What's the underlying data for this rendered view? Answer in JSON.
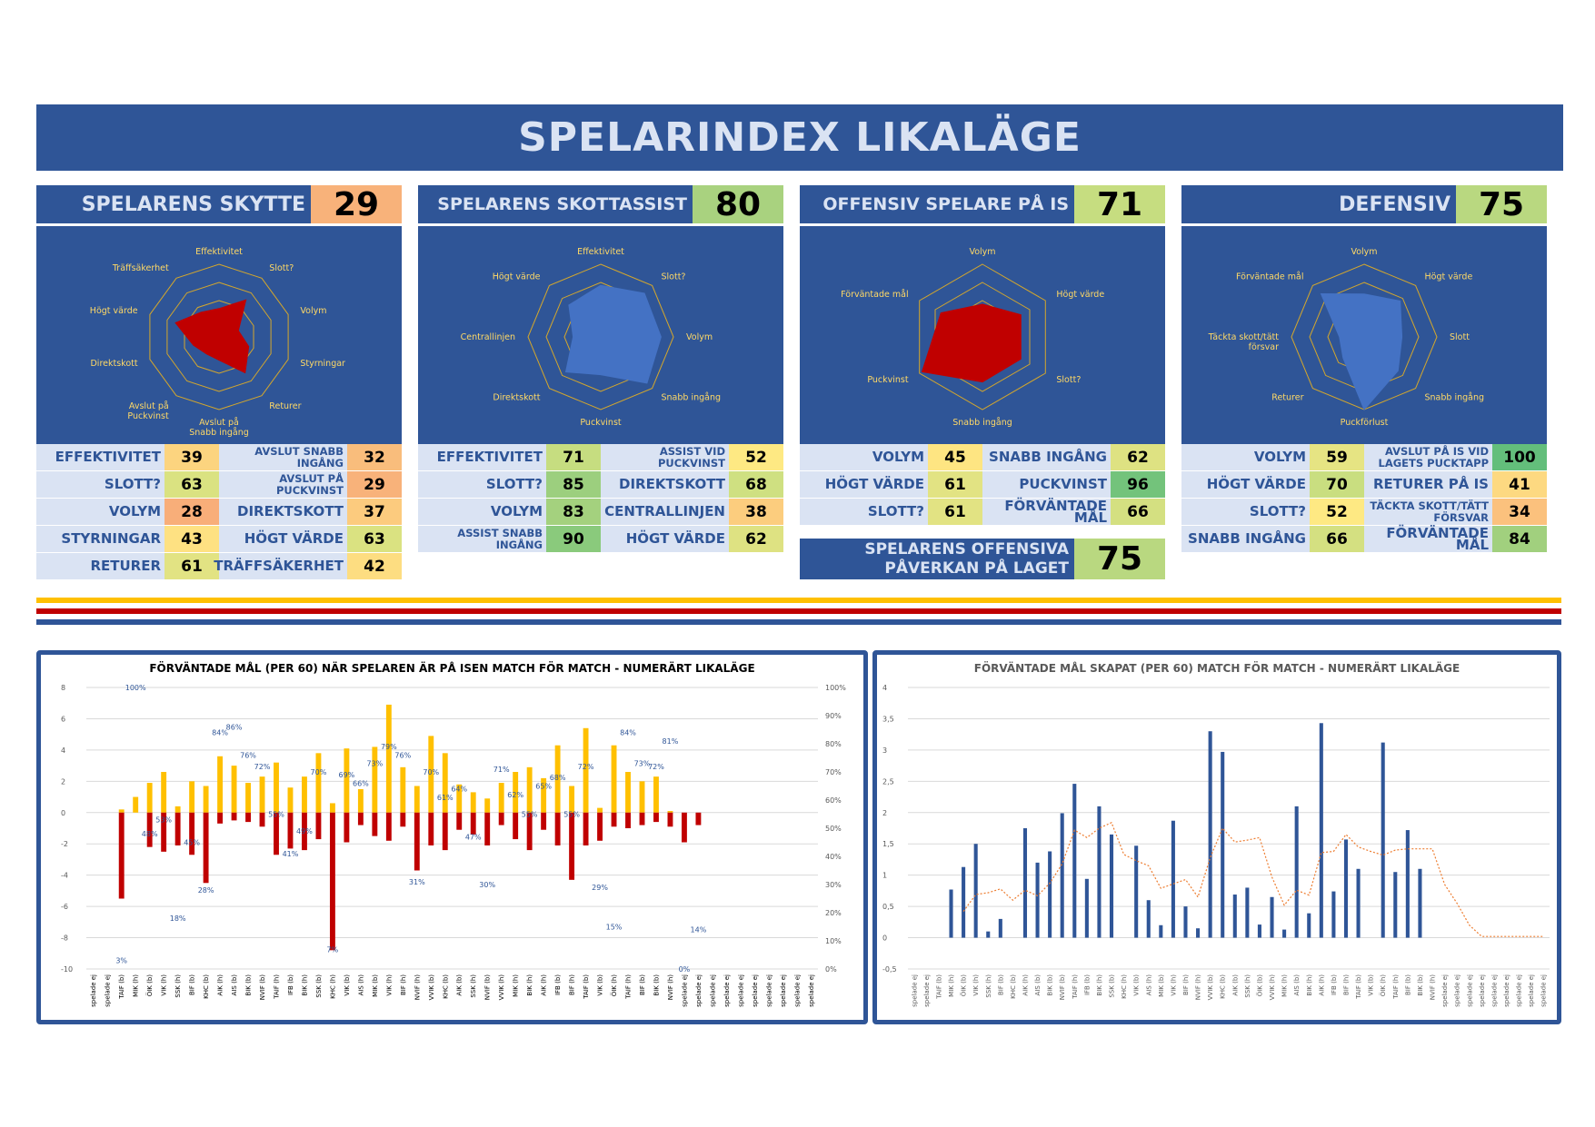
{
  "title": "SPELARINDEX LIKALÄGE",
  "colors": {
    "navy": "#2f5597",
    "light_blue": "#dae3f3",
    "header_text": "#dae3f3",
    "radar_red": "#c00000",
    "radar_blue": "#4472c4",
    "radar_grid": "#d4a72c",
    "bar_yellow": "#ffc000",
    "bar_red": "#c00000",
    "stripe_yellow": "#ffc000",
    "stripe_red": "#c00000",
    "stripe_blue": "#2f5597",
    "line_orange": "#ed7d31"
  },
  "panels": [
    {
      "name": "SPELARENS SKYTTE",
      "value": "29",
      "value_color": "#f8b27a",
      "radar": {
        "color": "#c00000",
        "axes": [
          "Effektivitet",
          "Slott?",
          "Volym",
          "Styrningar",
          "Returer",
          "Avslut på Snabb ingång",
          "Avslut på Puckvinst",
          "Direktskott",
          "Högt värde",
          "Träffsäkerhet"
        ],
        "values": [
          39,
          63,
          28,
          43,
          61,
          32,
          29,
          37,
          63,
          42
        ]
      },
      "rows": [
        {
          "l1": "EFFEKTIVITET",
          "v1": "39",
          "c1": "#fcd47f",
          "l2": "AVSLUT SNABB INGÅNG",
          "v2": "32",
          "c2": "#f9bd7c"
        },
        {
          "l1": "SLOTT?",
          "v1": "63",
          "c1": "#dae281",
          "l2": "AVSLUT PÅ PUCKVINST",
          "v2": "29",
          "c2": "#f8b27a"
        },
        {
          "l1": "VOLYM",
          "v1": "28",
          "c1": "#f8ae79",
          "l2": "DIREKTSKOTT",
          "v2": "37",
          "c2": "#fccb7e"
        },
        {
          "l1": "STYRNINGAR",
          "v1": "43",
          "c1": "#fee182",
          "l2": "HÖGT VÄRDE",
          "v2": "63",
          "c2": "#dae281"
        },
        {
          "l1": "RETURER",
          "v1": "61",
          "c1": "#e2e383",
          "l2": "TRÄFFSÄKERHET",
          "v2": "42",
          "c2": "#fddd81"
        }
      ]
    },
    {
      "name": "SPELARENS SKOTTASSIST",
      "value": "80",
      "value_color": "#a9d27f",
      "radar": {
        "color": "#4472c4",
        "axes": [
          "Effektivitet",
          "Slott?",
          "Volym",
          "Snabb ingång",
          "Puckvinst",
          "Direktskott",
          "Centrallinjen",
          "Högt värde"
        ],
        "values": [
          71,
          85,
          83,
          90,
          52,
          68,
          38,
          62
        ]
      },
      "rows": [
        {
          "l1": "EFFEKTIVITET",
          "v1": "71",
          "c1": "#c6dd80",
          "l2": "ASSIST VID PUCKVINST",
          "v2": "52",
          "c2": "#fee983"
        },
        {
          "l1": "SLOTT?",
          "v1": "85",
          "c1": "#9ccf7e",
          "l2": "DIREKTSKOTT",
          "v2": "68",
          "c2": "#cfe081"
        },
        {
          "l1": "VOLYM",
          "v1": "83",
          "c1": "#a4d17e",
          "l2": "CENTRALLINJEN",
          "v2": "38",
          "c2": "#fccd7e"
        },
        {
          "l1": "ASSIST SNABB INGÅNG",
          "v1": "90",
          "c1": "#8aca7c",
          "l2": "HÖGT VÄRDE",
          "v2": "62",
          "c2": "#dee282"
        }
      ]
    },
    {
      "name": "OFFENSIV SPELARE PÅ IS",
      "value": "71",
      "value_color": "#c6dd80",
      "radar": {
        "color": "#c00000",
        "axes": [
          "Volym",
          "Högt värde",
          "Slott?",
          "Snabb ingång",
          "Puckvinst",
          "Förväntade mål"
        ],
        "values": [
          45,
          61,
          61,
          62,
          96,
          66
        ]
      },
      "rows": [
        {
          "l1": "VOLYM",
          "v1": "45",
          "c1": "#fee582",
          "l2": "SNABB INGÅNG",
          "v2": "62",
          "c2": "#dee282"
        },
        {
          "l1": "HÖGT VÄRDE",
          "v1": "61",
          "c1": "#e2e383",
          "l2": "PUCKVINST",
          "v2": "96",
          "c2": "#73c37b"
        },
        {
          "l1": "SLOTT?",
          "v1": "61",
          "c1": "#e2e383",
          "l2": "FÖRVÄNTADE MÅL",
          "v2": "66",
          "c2": "#d4e081"
        }
      ]
    },
    {
      "name": "DEFENSIV",
      "value": "75",
      "value_color": "#b9d880",
      "radar": {
        "color": "#4472c4",
        "axes": [
          "Volym",
          "Högt värde",
          "Slott",
          "Snabb ingång",
          "Puckförlust",
          "Returer",
          "Täckta skott/tätt försvar",
          "Förväntade mål"
        ],
        "values": [
          59,
          70,
          52,
          66,
          100,
          41,
          34,
          84
        ]
      },
      "rows": [
        {
          "l1": "VOLYM",
          "v1": "59",
          "c1": "#e6e483",
          "l2": "AVSLUT PÅ IS VID LAGETS PUCKTAPP",
          "v2": "100",
          "c2": "#63be7b"
        },
        {
          "l1": "HÖGT VÄRDE",
          "v1": "70",
          "c1": "#c9de80",
          "l2": "RETURER PÅ IS",
          "v2": "41",
          "c2": "#fdd981"
        },
        {
          "l1": "SLOTT?",
          "v1": "52",
          "c1": "#fee983",
          "l2": "TÄCKTA SKOTT/TÄTT FÖRSVAR",
          "v2": "34",
          "c2": "#fbc17d"
        },
        {
          "l1": "SNABB INGÅNG",
          "v1": "66",
          "c1": "#d4e081",
          "l2": "FÖRVÄNTADE MÅL",
          "v2": "84",
          "c2": "#a1d07e"
        }
      ]
    }
  ],
  "offensive_impact": {
    "label": "SPELARENS OFFENSIVA PÅVERKAN PÅ LAGET",
    "value": "75",
    "value_color": "#b9d880"
  },
  "chart_data": [
    {
      "type": "bar",
      "title": "FÖRVÄNTADE MÅL (PER 60) NÄR SPELAREN ÄR PÅ ISEN MATCH FÖR MATCH - NUMERÄRT LIKALÄGE",
      "ylim": [
        -10,
        8
      ],
      "y_ticks": [
        8,
        6,
        4,
        2,
        0,
        -2,
        -4,
        -6,
        -8,
        -10
      ],
      "y2_ticks": [
        "100%",
        "90%",
        "80%",
        "70%",
        "60%",
        "50%",
        "40%",
        "30%",
        "20%",
        "10%",
        "0%"
      ],
      "y2lim": [
        0,
        100
      ],
      "categories": [
        "spelade ej",
        "spelade ej",
        "TAIF (b)",
        "MIK (h)",
        "ÖIK (b)",
        "VIK (h)",
        "SSK (h)",
        "BIF (b)",
        "KHC (b)",
        "AIK (h)",
        "AIS (b)",
        "BIK (b)",
        "NVIF (b)",
        "TAIF (h)",
        "IFB (b)",
        "BIK (h)",
        "SSK (b)",
        "KHC (h)",
        "VIK (b)",
        "AIS (h)",
        "MIK (b)",
        "VIK (h)",
        "BIF (h)",
        "NVIF (h)",
        "VVIK (b)",
        "KHC (b)",
        "AIK (b)",
        "SSK (h)",
        "NVIF (b)",
        "VVIK (h)",
        "MIK (h)",
        "BIK (h)",
        "AIK (h)",
        "IFB (b)",
        "BIF (h)",
        "TAIF (b)",
        "VIK (b)",
        "ÖIK (h)",
        "TAIF (h)",
        "BIF (b)",
        "BIK (b)",
        "NVIF (h)",
        "spelade ej",
        "spelade ej",
        "spelade ej",
        "spelade ej",
        "spelade ej",
        "spelade ej",
        "spelade ej",
        "spelade ej",
        "spelade ej",
        "spelade ej"
      ],
      "series": [
        {
          "values": [
            0,
            0,
            0.2,
            1.0,
            1.9,
            2.6,
            0.4,
            2.0,
            1.7,
            3.6,
            3.0,
            1.9,
            2.3,
            3.2,
            1.6,
            2.3,
            3.8,
            0.6,
            4.1,
            1.5,
            4.2,
            6.9,
            2.9,
            1.7,
            4.9,
            3.8,
            1.8,
            1.3,
            0.9,
            1.9,
            2.6,
            2.9,
            2.2,
            4.3,
            1.7,
            5.4,
            0.3,
            4.3,
            2.6,
            2.0,
            2.3,
            0.1,
            0,
            0,
            0,
            0,
            0,
            0,
            0,
            0,
            0,
            0
          ]
        },
        {
          "values": [
            0,
            0,
            -5.5,
            0,
            -2.2,
            -2.5,
            -2.1,
            -2.7,
            -4.5,
            -0.7,
            -0.5,
            -0.6,
            -0.9,
            -2.7,
            -2.3,
            -2.4,
            -1.7,
            -8.8,
            -1.9,
            -0.8,
            -1.5,
            -1.8,
            -0.9,
            -3.7,
            -2.1,
            -2.4,
            -1.1,
            -1.4,
            -2.1,
            -0.8,
            -1.7,
            -2.4,
            -1.1,
            -2.1,
            -4.3,
            -2.1,
            -1.8,
            -0.9,
            -1.0,
            -0.8,
            -0.6,
            -0.9,
            -1.9,
            -0.8,
            0,
            0,
            0,
            0,
            0,
            0,
            0,
            0
          ]
        }
      ],
      "pct_labels": [
        null,
        null,
        "3%",
        "100%",
        "48%",
        "53%",
        "18%",
        "45%",
        "28%",
        "84%",
        "86%",
        "76%",
        "72%",
        "55%",
        "41%",
        "49%",
        "70%",
        "7%",
        "69%",
        "66%",
        "73%",
        "79%",
        "76%",
        "31%",
        "70%",
        "61%",
        "64%",
        "47%",
        "30%",
        "71%",
        "62%",
        "55%",
        "65%",
        "68%",
        "55%",
        "72%",
        "29%",
        "15%",
        "84%",
        "73%",
        "72%",
        "81%",
        "0%",
        "14%",
        null,
        null,
        null,
        null,
        null,
        null,
        null,
        null
      ],
      "pct_values": [
        null,
        null,
        3,
        100,
        48,
        53,
        18,
        45,
        28,
        84,
        86,
        76,
        72,
        55,
        41,
        49,
        70,
        7,
        69,
        66,
        73,
        79,
        76,
        31,
        70,
        61,
        64,
        47,
        30,
        71,
        62,
        55,
        65,
        68,
        55,
        72,
        29,
        15,
        84,
        73,
        72,
        81,
        0,
        14,
        null,
        null,
        null,
        null,
        null,
        null,
        null,
        null
      ]
    },
    {
      "type": "bar",
      "title": "FÖRVÄNTADE MÅL SKAPAT (PER 60) MATCH FÖR MATCH - NUMERÄRT LIKALÄGE",
      "ylim": [
        -0.5,
        4
      ],
      "y_ticks": [
        "4",
        "3,5",
        "3",
        "2,5",
        "2",
        "1,5",
        "1",
        "0,5",
        "0",
        "-0,5"
      ],
      "categories": [
        "spelade ej",
        "spelade ej",
        "TAIF (b)",
        "MIK (h)",
        "ÖIK (b)",
        "VIK (h)",
        "SSK (h)",
        "BIF (b)",
        "KHC (b)",
        "AIK (h)",
        "AIS (b)",
        "BIK (b)",
        "NVIF (b)",
        "TAIF (h)",
        "IFB (b)",
        "BIK (h)",
        "SSK (b)",
        "KHC (h)",
        "VIK (b)",
        "AIS (h)",
        "MIK (b)",
        "VIK (h)",
        "BIF (h)",
        "NVIF (h)",
        "VVIK (b)",
        "KHC (b)",
        "AIK (b)",
        "SSK (h)",
        "ÖIK (b)",
        "VVIK (h)",
        "MIK (h)",
        "AIS (b)",
        "BIK (h)",
        "AIK (h)",
        "IFB (b)",
        "BIF (h)",
        "TAIF (b)",
        "VIK (b)",
        "ÖIK (h)",
        "TAIF (h)",
        "BIF (b)",
        "BIK (b)",
        "NVIF (h)",
        "spelade ej",
        "spelade ej",
        "spelade ej",
        "spelade ej",
        "spelade ej",
        "spelade ej",
        "spelade ej",
        "spelade ej",
        "spelade ej"
      ],
      "series": [
        {
          "values": [
            0,
            0,
            0,
            0.77,
            1.13,
            1.5,
            0.1,
            0.3,
            0,
            1.75,
            1.2,
            1.38,
            1.99,
            2.46,
            0.94,
            2.1,
            1.65,
            0,
            1.47,
            0.6,
            0.2,
            1.87,
            0.5,
            0.15,
            3.3,
            2.97,
            0.69,
            0.8,
            0.21,
            0.65,
            0.13,
            2.1,
            0.39,
            3.43,
            0.74,
            1.57,
            1.1,
            0,
            3.12,
            1.05,
            1.72,
            1.1,
            0,
            0,
            0,
            0,
            0,
            0,
            0,
            0,
            0,
            0
          ]
        },
        {
          "values": [
            null,
            null,
            null,
            null,
            0.42,
            0.69,
            0.72,
            0.78,
            0.6,
            0.76,
            0.67,
            0.87,
            1.18,
            1.72,
            1.6,
            1.75,
            1.84,
            1.33,
            1.23,
            1.15,
            0.79,
            0.86,
            0.93,
            0.65,
            1.28,
            1.75,
            1.53,
            1.56,
            1.6,
            0.97,
            0.52,
            0.76,
            0.68,
            1.36,
            1.38,
            1.65,
            1.45,
            1.38,
            1.32,
            1.4,
            1.42,
            1.42,
            1.42,
            0.85,
            0.55,
            0.2,
            0.02,
            0.02,
            0.02,
            0.02,
            0.02,
            0.02
          ]
        }
      ]
    }
  ]
}
